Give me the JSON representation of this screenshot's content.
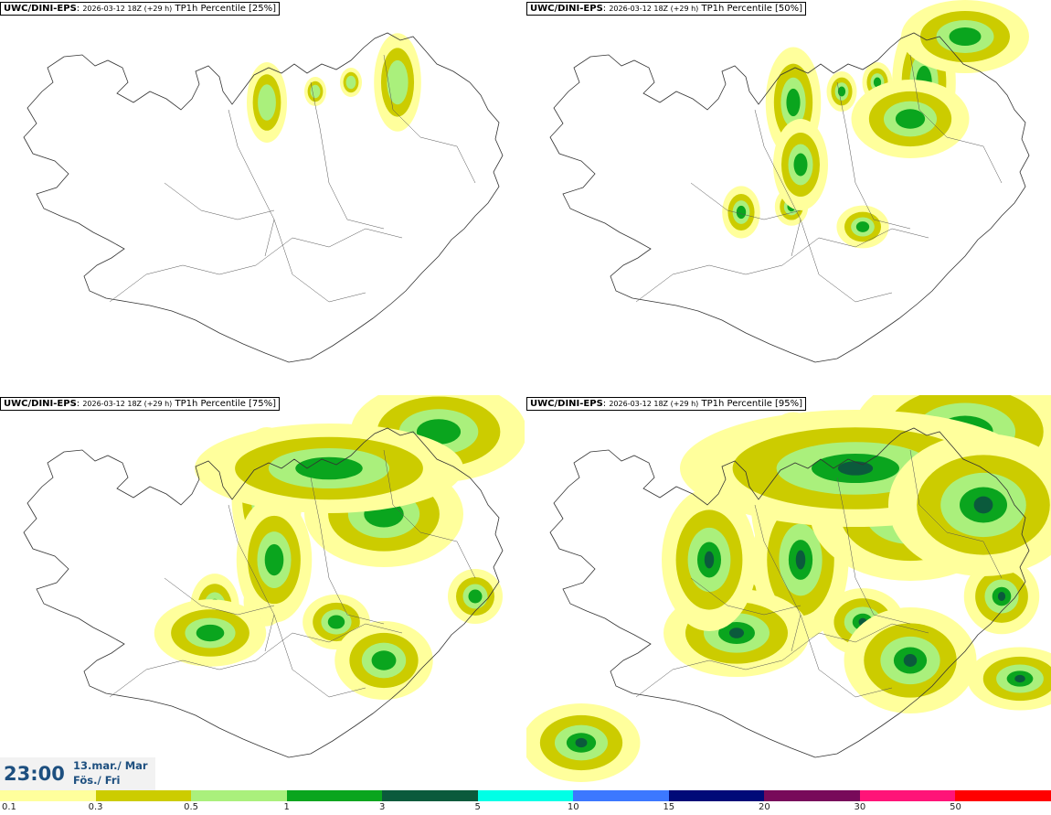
{
  "model": "UWC/DINI-EPS",
  "run_info": "2026-03-12 18Z (+29 h)",
  "panels": [
    {
      "label": "TP1h Percentile [25%]",
      "intensity": 0.25
    },
    {
      "label": "TP1h Percentile [50%]",
      "intensity": 0.5
    },
    {
      "label": "TP1h Percentile [75%]",
      "intensity": 0.75
    },
    {
      "label": "TP1h Percentile [95%]",
      "intensity": 1.0
    }
  ],
  "valid_time": "23:00",
  "date_line1": "13.mar./ Mar",
  "date_line2": "Fös./ Fri",
  "legend": {
    "ticks": [
      "0.1",
      "0.3",
      "0.5",
      "1",
      "3",
      "5",
      "10",
      "15",
      "20",
      "30",
      "50"
    ],
    "colors": [
      "#ffff9c",
      "#cccc00",
      "#aaf07c",
      "#0aa51e",
      "#0b5a3c",
      "#00ffe6",
      "#3c78ff",
      "#000a78",
      "#780a5a",
      "#ff1478",
      "#ff0000"
    ]
  },
  "map_colors": {
    "light": "#ffff9c",
    "medium": "#cccc00",
    "green": "#aaf07c",
    "dark": "#0aa51e",
    "darkest": "#0b5a3c"
  }
}
